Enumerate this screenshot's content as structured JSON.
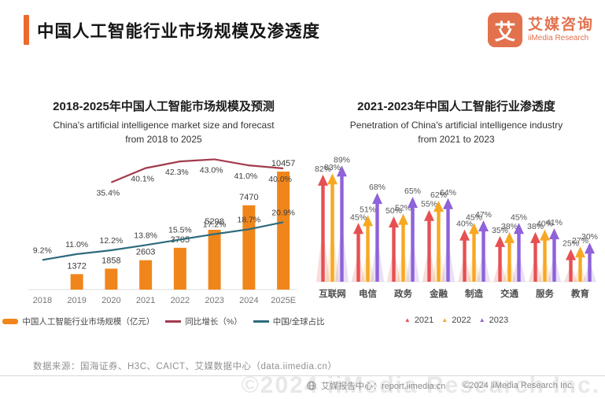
{
  "header": {
    "title": "中国人工智能行业市场规模及渗透度"
  },
  "logo": {
    "mark": "艾",
    "name_cn": "艾媒咨询",
    "name_en": "iiMedia Research"
  },
  "colors": {
    "accent": "#ED6A2C",
    "brand": "#E2714D",
    "bar": "#F0861B",
    "growth_line": "#A23B4E",
    "share_line": "#2E6B7C",
    "y2021": "#E65052",
    "y2022": "#F7A823",
    "y2023": "#8F62D9",
    "axis_text": "#777777",
    "label_text": "#3C3C3C"
  },
  "chart_data": [
    {
      "type": "bar",
      "variant": "bar+line combo",
      "title": "2018-2025年中国人工智能市场规模及预测",
      "subtitle": [
        "China's artificial intelligence market size and forecast",
        "from 2018 to 2025"
      ],
      "categories": [
        "2018",
        "2019",
        "2020",
        "2021",
        "2022",
        "2023",
        "2024",
        "2025E"
      ],
      "series": [
        {
          "name": "中国人工智能行业市场规模（亿元）",
          "type": "bar",
          "color": "#F0861B",
          "values": [
            null,
            1372,
            1858,
            2603,
            3705,
            5298,
            7470,
            10457
          ]
        },
        {
          "name": "同比增长（%）",
          "type": "line",
          "color": "#A23B4E",
          "values": [
            null,
            null,
            35.4,
            40.1,
            42.3,
            43.0,
            41.0,
            40.0
          ]
        },
        {
          "name": "中国/全球占比",
          "type": "line",
          "color": "#2E6B7C",
          "values": [
            9.2,
            11.0,
            12.2,
            13.8,
            15.5,
            17.2,
            18.7,
            20.9
          ]
        }
      ],
      "legend_position": "bottom",
      "grid": false
    },
    {
      "type": "bar",
      "variant": "arrow-bars",
      "title": "2021-2023年中国人工智能行业渗透度",
      "subtitle": [
        "Penetration of China's artificial intelligence industry",
        "from 2021 to 2023"
      ],
      "categories": [
        "互联网",
        "电信",
        "政务",
        "金融",
        "制造",
        "交通",
        "服务",
        "教育"
      ],
      "unit": "%",
      "ylim": [
        0,
        100
      ],
      "series": [
        {
          "name": "2021",
          "color": "#E65052",
          "values": [
            82,
            45,
            50,
            55,
            40,
            35,
            38,
            25
          ]
        },
        {
          "name": "2022",
          "color": "#F7A823",
          "values": [
            83,
            51,
            52,
            62,
            45,
            38,
            40,
            27
          ]
        },
        {
          "name": "2023",
          "color": "#8F62D9",
          "values": [
            89,
            68,
            65,
            64,
            47,
            45,
            41,
            30
          ]
        }
      ],
      "legend_position": "bottom",
      "grid": false
    }
  ],
  "source": "数据来源：国海证券、H3C、CAICT、艾媒数据中心（data.iimedia.cn）",
  "footer": {
    "report_center": "艾媒报告中心：report.iimedia.cn",
    "copyright": "©2024 iiMedia Research Inc.",
    "watermark": "©2024 iiMedia Research Inc."
  }
}
